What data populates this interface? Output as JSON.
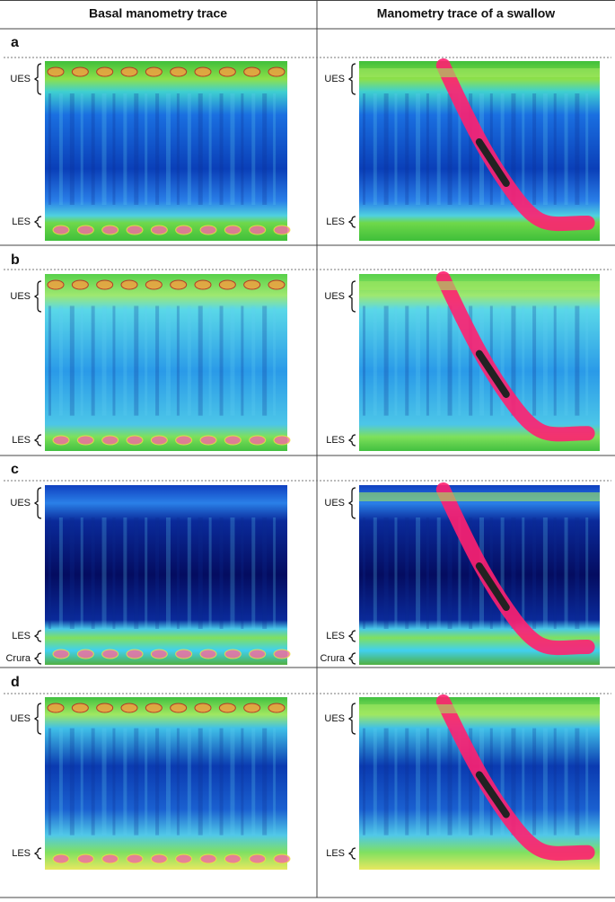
{
  "headers": [
    "Basal manometry trace",
    "Manometry trace of a swallow"
  ],
  "panels": [
    {
      "letter": "a",
      "left_labels": [
        "UES",
        "LES"
      ],
      "right_labels": [
        "UES",
        "LES"
      ]
    },
    {
      "letter": "b",
      "left_labels": [
        "UES",
        "LES"
      ],
      "right_labels": [
        "UES",
        "LES"
      ]
    },
    {
      "letter": "c",
      "left_labels": [
        "UES",
        "LES",
        "Crura"
      ],
      "right_labels": [
        "UES",
        "LES",
        "Crura"
      ]
    },
    {
      "letter": "d",
      "left_labels": [
        "UES",
        "LES"
      ],
      "right_labels": [
        "UES",
        "LES"
      ]
    }
  ]
}
